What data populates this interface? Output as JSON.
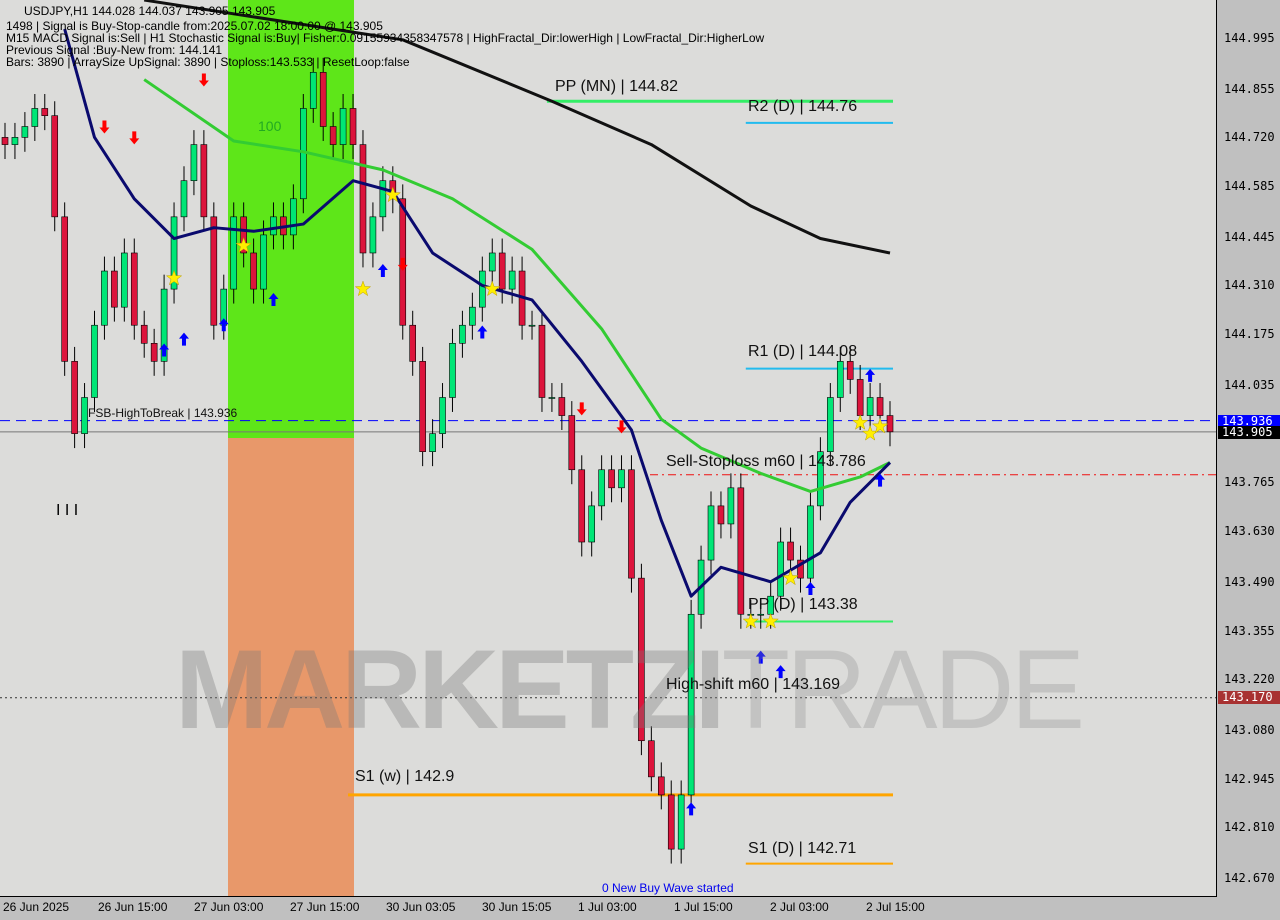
{
  "header": {
    "line1": "USDJPY,H1  144.028 144.037 143.905 143.905",
    "line2": "1498 | Signal is Buy-Stop-candle from:2025.07.02 18:00:00 @ 143.905",
    "line3": "M15 MACD Signal is:Sell | H1 Stochastic Signal is:Buy| Fisher:0.09155934358347578 | HighFractal_Dir:lowerHigh | LowFractal_Dir:HigherLow",
    "line4": "Previous Signal :Buy-New from: 144.141",
    "line5": "Bars: 3890 | ArraySize UpSignal: 3890 | Stoploss:143.533 | ResetLoop:false"
  },
  "watermark": {
    "bold": "MARKETZI",
    "light": "TRADE"
  },
  "annotations": {
    "zone_label": "100",
    "bottom_note": "0 New Buy Wave started",
    "bars_mark": "I I I"
  },
  "colors": {
    "bull": "#00e676",
    "bear": "#dc143c",
    "ma_slow": "#111111",
    "ma_mid": "#33cc33",
    "ma_fast": "#0a0a6e",
    "green_zone": "#5ee619",
    "orange_zone": "#e8986a",
    "bid_tag": "#0000ff",
    "price_tag": "#000000",
    "shift_tag": "#a83232"
  },
  "chart_data": {
    "type": "candlestick",
    "symbol": "USDJPY,H1",
    "ylim": [
      142.59,
      145.1
    ],
    "y_ticks": [
      144.995,
      144.855,
      144.72,
      144.585,
      144.445,
      144.31,
      144.175,
      144.035,
      143.765,
      143.63,
      143.49,
      143.355,
      143.22,
      143.08,
      142.945,
      142.81,
      142.67
    ],
    "x_ticks": [
      "26 Jun 2025",
      "26 Jun 15:00",
      "27 Jun 03:00",
      "27 Jun 15:00",
      "30 Jun 03:05",
      "30 Jun 15:05",
      "1 Jul 03:00",
      "1 Jul 15:00",
      "2 Jul 03:00",
      "2 Jul 15:00"
    ],
    "closes": [
      144.7,
      144.72,
      144.75,
      144.8,
      144.78,
      144.5,
      144.1,
      143.9,
      144.0,
      144.2,
      144.35,
      144.25,
      144.4,
      144.2,
      144.15,
      144.1,
      144.3,
      144.5,
      144.6,
      144.7,
      144.5,
      144.2,
      144.3,
      144.5,
      144.4,
      144.3,
      144.45,
      144.5,
      144.45,
      144.55,
      144.8,
      144.9,
      144.75,
      144.7,
      144.8,
      144.7,
      144.4,
      144.5,
      144.6,
      144.55,
      144.2,
      144.1,
      143.85,
      143.9,
      144.0,
      144.15,
      144.2,
      144.25,
      144.35,
      144.4,
      144.3,
      144.35,
      144.2,
      144.2,
      144.0,
      144.0,
      143.95,
      143.8,
      143.6,
      143.7,
      143.8,
      143.75,
      143.8,
      143.5,
      143.05,
      142.95,
      142.9,
      142.75,
      142.9,
      143.4,
      143.55,
      143.7,
      143.65,
      143.75,
      143.4,
      143.4,
      143.4,
      143.45,
      143.6,
      143.55,
      143.5,
      143.7,
      143.85,
      144.0,
      144.1,
      144.05,
      143.95,
      144.0,
      143.95,
      143.905
    ],
    "ma_slow": [
      [
        14,
        145.1
      ],
      [
        40,
        144.99
      ],
      [
        55,
        144.82
      ],
      [
        65,
        144.7
      ],
      [
        75,
        144.53
      ],
      [
        82,
        144.44
      ],
      [
        89,
        144.4
      ]
    ],
    "ma_mid": [
      [
        14,
        144.88
      ],
      [
        23,
        144.71
      ],
      [
        30,
        144.68
      ],
      [
        38,
        144.63
      ],
      [
        45,
        144.55
      ],
      [
        53,
        144.41
      ],
      [
        60,
        144.19
      ],
      [
        66,
        143.94
      ],
      [
        70,
        143.86
      ],
      [
        76,
        143.79
      ],
      [
        81,
        143.74
      ],
      [
        86,
        143.78
      ],
      [
        89,
        143.82
      ]
    ],
    "ma_fast": [
      [
        6,
        145.02
      ],
      [
        9,
        144.72
      ],
      [
        13,
        144.55
      ],
      [
        17,
        144.44
      ],
      [
        21,
        144.47
      ],
      [
        25,
        144.46
      ],
      [
        30,
        144.48
      ],
      [
        35,
        144.6
      ],
      [
        39,
        144.57
      ],
      [
        43,
        144.4
      ],
      [
        48,
        144.31
      ],
      [
        53,
        144.27
      ],
      [
        58,
        144.1
      ],
      [
        63,
        143.91
      ],
      [
        66,
        143.66
      ],
      [
        69,
        143.45
      ],
      [
        72,
        143.53
      ],
      [
        77,
        143.49
      ],
      [
        82,
        143.57
      ],
      [
        85,
        143.71
      ],
      [
        89,
        143.82
      ]
    ],
    "levels": [
      {
        "label": "PP (MN) | 144.82",
        "price": 144.82,
        "color": "#33ee66",
        "from": 55,
        "style": "solid"
      },
      {
        "label": "R2 (D) | 144.76",
        "price": 144.76,
        "color": "#22bbee",
        "from": 75,
        "style": "solid"
      },
      {
        "label": "R1 (D) | 144.08",
        "price": 144.08,
        "color": "#22bbee",
        "from": 75,
        "style": "solid"
      },
      {
        "label": "FSB-HighToBreak | 143.936",
        "price": 143.936,
        "color": "#0000ff",
        "from": 0,
        "style": "dash",
        "full": true
      },
      {
        "label": "Sell-Stoploss m60 | 143.786",
        "price": 143.786,
        "color": "#ee1111",
        "from": 65,
        "style": "dashdot",
        "full": true
      },
      {
        "label": "PP (D) | 143.38",
        "price": 143.38,
        "color": "#33ee66",
        "from": 75,
        "style": "solid"
      },
      {
        "label": "High-shift m60 | 143.169",
        "price": 143.169,
        "color": "#333333",
        "from": 0,
        "style": "dot",
        "full": true
      },
      {
        "label": "S1 (w) | 142.9",
        "price": 142.9,
        "color": "#ffa500",
        "from": 35,
        "style": "solid"
      },
      {
        "label": "S1 (D) | 142.71",
        "price": 142.71,
        "color": "#ffa500",
        "from": 75,
        "style": "solid"
      }
    ],
    "current_price": 143.905,
    "price_tags": [
      {
        "value": "143.936",
        "price": 143.936,
        "bg": "#0000ff",
        "fg": "#ffffff"
      },
      {
        "value": "143.905",
        "price": 143.905,
        "bg": "#000000",
        "fg": "#ffffff"
      },
      {
        "value": "143.170",
        "price": 143.17,
        "bg": "#a83232",
        "fg": "#ffffff"
      }
    ],
    "buy_arrows": [
      [
        16,
        144.13
      ],
      [
        18,
        144.16
      ],
      [
        22,
        144.2
      ],
      [
        27,
        144.27
      ],
      [
        38,
        144.35
      ],
      [
        48,
        144.18
      ],
      [
        76,
        143.28
      ],
      [
        78,
        143.24
      ],
      [
        81,
        143.47
      ],
      [
        87,
        144.06
      ],
      [
        88,
        143.77
      ],
      [
        69,
        142.86
      ]
    ],
    "sell_arrows": [
      [
        10,
        144.75
      ],
      [
        13,
        144.72
      ],
      [
        20,
        144.88
      ],
      [
        40,
        144.37
      ],
      [
        58,
        143.97
      ],
      [
        62,
        143.92
      ]
    ],
    "stars": [
      [
        17,
        144.33
      ],
      [
        24,
        144.42
      ],
      [
        36,
        144.3
      ],
      [
        39,
        144.56
      ],
      [
        49,
        144.3
      ],
      [
        75,
        143.38
      ],
      [
        77,
        143.38
      ],
      [
        79,
        143.5
      ],
      [
        86,
        143.93
      ],
      [
        87,
        143.9
      ],
      [
        88,
        143.92
      ]
    ]
  }
}
